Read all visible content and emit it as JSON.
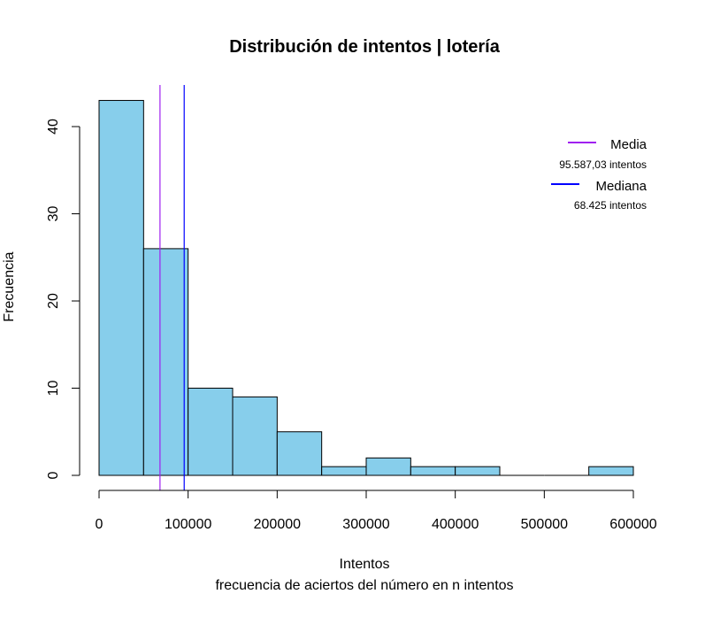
{
  "chart_data": {
    "type": "bar",
    "title": "Distribución de intentos | lotería",
    "xlabel": "Intentos",
    "subtitle": "frecuencia de aciertos del número en n intentos",
    "ylabel": "Frecuencia",
    "bin_edges": [
      0,
      50000,
      100000,
      150000,
      200000,
      250000,
      300000,
      350000,
      400000,
      450000,
      500000,
      550000,
      600000
    ],
    "values": [
      43,
      26,
      10,
      9,
      5,
      1,
      2,
      1,
      1,
      0,
      0,
      1
    ],
    "xlim": [
      0,
      600000
    ],
    "ylim": [
      0,
      45
    ],
    "x_ticks": [
      0,
      100000,
      200000,
      300000,
      400000,
      500000,
      600000
    ],
    "x_tick_labels": [
      "0",
      "100000",
      "200000",
      "300000",
      "400000",
      "500000",
      "600000"
    ],
    "y_ticks": [
      0,
      10,
      20,
      30,
      40
    ],
    "y_tick_labels": [
      "0",
      "10",
      "20",
      "30",
      "40"
    ],
    "bar_color": "#87CEEB",
    "vlines": [
      {
        "name": "Media",
        "x": 95587.03,
        "color": "#0000FF"
      },
      {
        "name": "Mediana",
        "x": 68425,
        "color": "#A020F0"
      }
    ],
    "legend": {
      "placement": "top-right",
      "entries": [
        {
          "label": "Media",
          "sublabel": "95.587,03 intentos",
          "color": "#A020F0"
        },
        {
          "label": "Mediana",
          "sublabel": "68.425 intentos",
          "color": "#0000FF"
        }
      ]
    }
  }
}
